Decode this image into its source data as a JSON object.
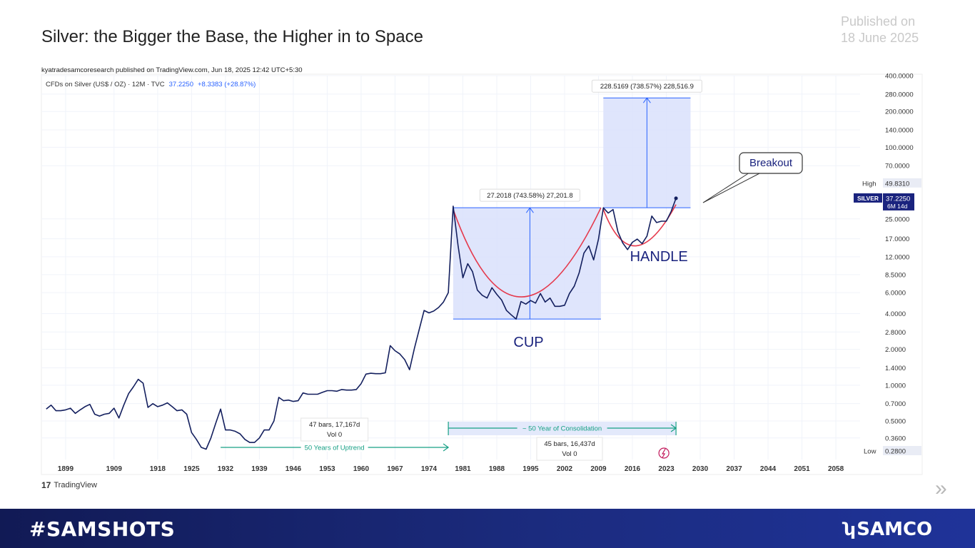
{
  "slide": {
    "title": "Silver: the Bigger the Base, the Higher in to Space",
    "published_line1": "Published on",
    "published_line2": "18 June 2025",
    "next_icon": "double-chevron-right-icon"
  },
  "footer": {
    "hashtag": "#SAMSHOTS",
    "brand": "SAMCO",
    "colors": {
      "bg_left": "#111a55",
      "bg_right": "#1f3399"
    }
  },
  "chart_header": {
    "publisher": "kyatradesamcoresearch published on TradingView.com, Jun 18, 2025 12:42 UTC+5:30",
    "symbol_line": "CFDs on Silver (US$ / OZ) · 12M · TVC",
    "last": "37.2250",
    "change": "+8.3383 (+28.87%)",
    "watermark": "TradingView"
  },
  "chart_data": {
    "type": "line",
    "title": "",
    "y_scale": "log",
    "ylim": [
      0.28,
      400
    ],
    "xlim": [
      1894,
      2063
    ],
    "x_ticks": [
      "1899",
      "1909",
      "1918",
      "1925",
      "1932",
      "1939",
      "1946",
      "1953",
      "1960",
      "1967",
      "1974",
      "1981",
      "1988",
      "1995",
      "2002",
      "2009",
      "2016",
      "2023",
      "2030",
      "2037",
      "2044",
      "2051",
      "2058"
    ],
    "y_ticks": [
      "400.0000",
      "280.0000",
      "200.0000",
      "140.0000",
      "100.0000",
      "70.0000",
      "49.8310",
      "25.0000",
      "17.0000",
      "12.0000",
      "8.5000",
      "6.0000",
      "4.0000",
      "2.8000",
      "2.0000",
      "1.4000",
      "1.0000",
      "0.7000",
      "0.5000",
      "0.3600",
      "0.2800"
    ],
    "series": [
      {
        "values": [
          [
            1895,
            0.63
          ],
          [
            1896,
            0.68
          ],
          [
            1897,
            0.61
          ],
          [
            1898,
            0.61
          ],
          [
            1899,
            0.62
          ],
          [
            1900,
            0.64
          ],
          [
            1901,
            0.58
          ],
          [
            1902,
            0.62
          ],
          [
            1903,
            0.66
          ],
          [
            1904,
            0.69
          ],
          [
            1905,
            0.57
          ],
          [
            1906,
            0.55
          ],
          [
            1907,
            0.57
          ],
          [
            1908,
            0.58
          ],
          [
            1909,
            0.64
          ],
          [
            1910,
            0.53
          ],
          [
            1911,
            0.68
          ],
          [
            1912,
            0.85
          ],
          [
            1913,
            0.97
          ],
          [
            1914,
            1.12
          ],
          [
            1915,
            1.04
          ],
          [
            1916,
            0.65
          ],
          [
            1917,
            0.7
          ],
          [
            1918,
            0.66
          ],
          [
            1919,
            0.68
          ],
          [
            1920,
            0.71
          ],
          [
            1921,
            0.66
          ],
          [
            1922,
            0.61
          ],
          [
            1923,
            0.62
          ],
          [
            1924,
            0.57
          ],
          [
            1925,
            0.4
          ],
          [
            1926,
            0.35
          ],
          [
            1927,
            0.3
          ],
          [
            1928,
            0.29
          ],
          [
            1929,
            0.36
          ],
          [
            1930,
            0.48
          ],
          [
            1931,
            0.63
          ],
          [
            1932,
            0.42
          ],
          [
            1933,
            0.42
          ],
          [
            1934,
            0.41
          ],
          [
            1935,
            0.39
          ],
          [
            1936,
            0.35
          ],
          [
            1937,
            0.33
          ],
          [
            1938,
            0.33
          ],
          [
            1939,
            0.36
          ],
          [
            1940,
            0.42
          ],
          [
            1941,
            0.42
          ],
          [
            1942,
            0.5
          ],
          [
            1943,
            0.79
          ],
          [
            1944,
            0.74
          ],
          [
            1945,
            0.75
          ],
          [
            1946,
            0.73
          ],
          [
            1947,
            0.74
          ],
          [
            1948,
            0.86
          ],
          [
            1949,
            0.84
          ],
          [
            1950,
            0.84
          ],
          [
            1951,
            0.84
          ],
          [
            1952,
            0.87
          ],
          [
            1953,
            0.9
          ],
          [
            1954,
            0.9
          ],
          [
            1955,
            0.89
          ],
          [
            1956,
            0.92
          ],
          [
            1957,
            0.91
          ],
          [
            1958,
            0.91
          ],
          [
            1959,
            0.92
          ],
          [
            1960,
            1.03
          ],
          [
            1961,
            1.24
          ],
          [
            1962,
            1.26
          ],
          [
            1963,
            1.25
          ],
          [
            1964,
            1.25
          ],
          [
            1965,
            1.27
          ],
          [
            1966,
            2.15
          ],
          [
            1967,
            1.95
          ],
          [
            1968,
            1.83
          ],
          [
            1969,
            1.64
          ],
          [
            1970,
            1.35
          ],
          [
            1971,
            2.04
          ],
          [
            1972,
            2.95
          ],
          [
            1973,
            4.25
          ],
          [
            1974,
            4.05
          ],
          [
            1975,
            4.2
          ],
          [
            1976,
            4.5
          ],
          [
            1977,
            5.0
          ],
          [
            1978,
            6.0
          ],
          [
            1979,
            32.0
          ],
          [
            1980,
            15.0
          ],
          [
            1981,
            8.0
          ],
          [
            1982,
            10.5
          ],
          [
            1983,
            9.0
          ],
          [
            1984,
            6.3
          ],
          [
            1985,
            5.7
          ],
          [
            1986,
            5.4
          ],
          [
            1987,
            6.6
          ],
          [
            1988,
            5.8
          ],
          [
            1989,
            5.2
          ],
          [
            1990,
            4.25
          ],
          [
            1991,
            3.9
          ],
          [
            1992,
            3.6
          ],
          [
            1993,
            5.05
          ],
          [
            1994,
            4.8
          ],
          [
            1995,
            5.15
          ],
          [
            1996,
            4.9
          ],
          [
            1997,
            5.9
          ],
          [
            1998,
            5.0
          ],
          [
            1999,
            5.4
          ],
          [
            2000,
            4.6
          ],
          [
            2001,
            4.6
          ],
          [
            2002,
            4.7
          ],
          [
            2003,
            5.9
          ],
          [
            2004,
            6.8
          ],
          [
            2005,
            8.8
          ],
          [
            2006,
            12.9
          ],
          [
            2007,
            14.8
          ],
          [
            2008,
            11.3
          ],
          [
            2009,
            16.9
          ],
          [
            2010,
            31.0
          ],
          [
            2011,
            28.0
          ],
          [
            2012,
            30.0
          ],
          [
            2013,
            19.5
          ],
          [
            2014,
            15.7
          ],
          [
            2015,
            13.8
          ],
          [
            2016,
            15.9
          ],
          [
            2017,
            16.9
          ],
          [
            2018,
            15.5
          ],
          [
            2019,
            17.9
          ],
          [
            2020,
            26.4
          ],
          [
            2021,
            23.3
          ],
          [
            2022,
            23.9
          ],
          [
            2023,
            23.9
          ],
          [
            2024,
            28.9
          ],
          [
            2025,
            37.23
          ]
        ]
      }
    ],
    "colors": {
      "line": "#131f5e",
      "box_fill": "#d9e1fb",
      "box_stroke": "#2962ff",
      "curve": "#e5394c",
      "teal": "#17a085",
      "last_tag": "#1a237e"
    },
    "annotations": {
      "cup_measure": "27.2018 (743.58%) 27,201.8",
      "target_measure": "228.5169 (738.57%) 228,516.9",
      "cup_label": "CUP",
      "handle_label": "HANDLE",
      "breakout_label": "Breakout",
      "uptrend_label": "50 Years of Uptrend",
      "uptrend_stats": "47 bars, 17,167d",
      "uptrend_vol": "Vol 0",
      "consolidation_label": "~ 50 Year of Consolidation",
      "consolidation_stats": "45 bars, 16,437d",
      "consolidation_vol": "Vol 0",
      "high_label": "High",
      "high_value": "49.8310",
      "low_label": "Low",
      "low_value": "0.2800",
      "last_symbol": "SILVER",
      "last_value": "37.2250",
      "last_countdown": "6M 14d"
    },
    "ranges": {
      "uptrend": [
        1931,
        1978
      ],
      "consolidation": [
        1978,
        2025
      ],
      "cup": {
        "x": [
          1979,
          2009.5
        ],
        "y": [
          3.6,
          31.0
        ]
      },
      "target": {
        "x": [
          2010,
          2028
        ],
        "y": [
          31.0,
          260.0
        ]
      }
    },
    "grid": true,
    "legend": "none"
  }
}
